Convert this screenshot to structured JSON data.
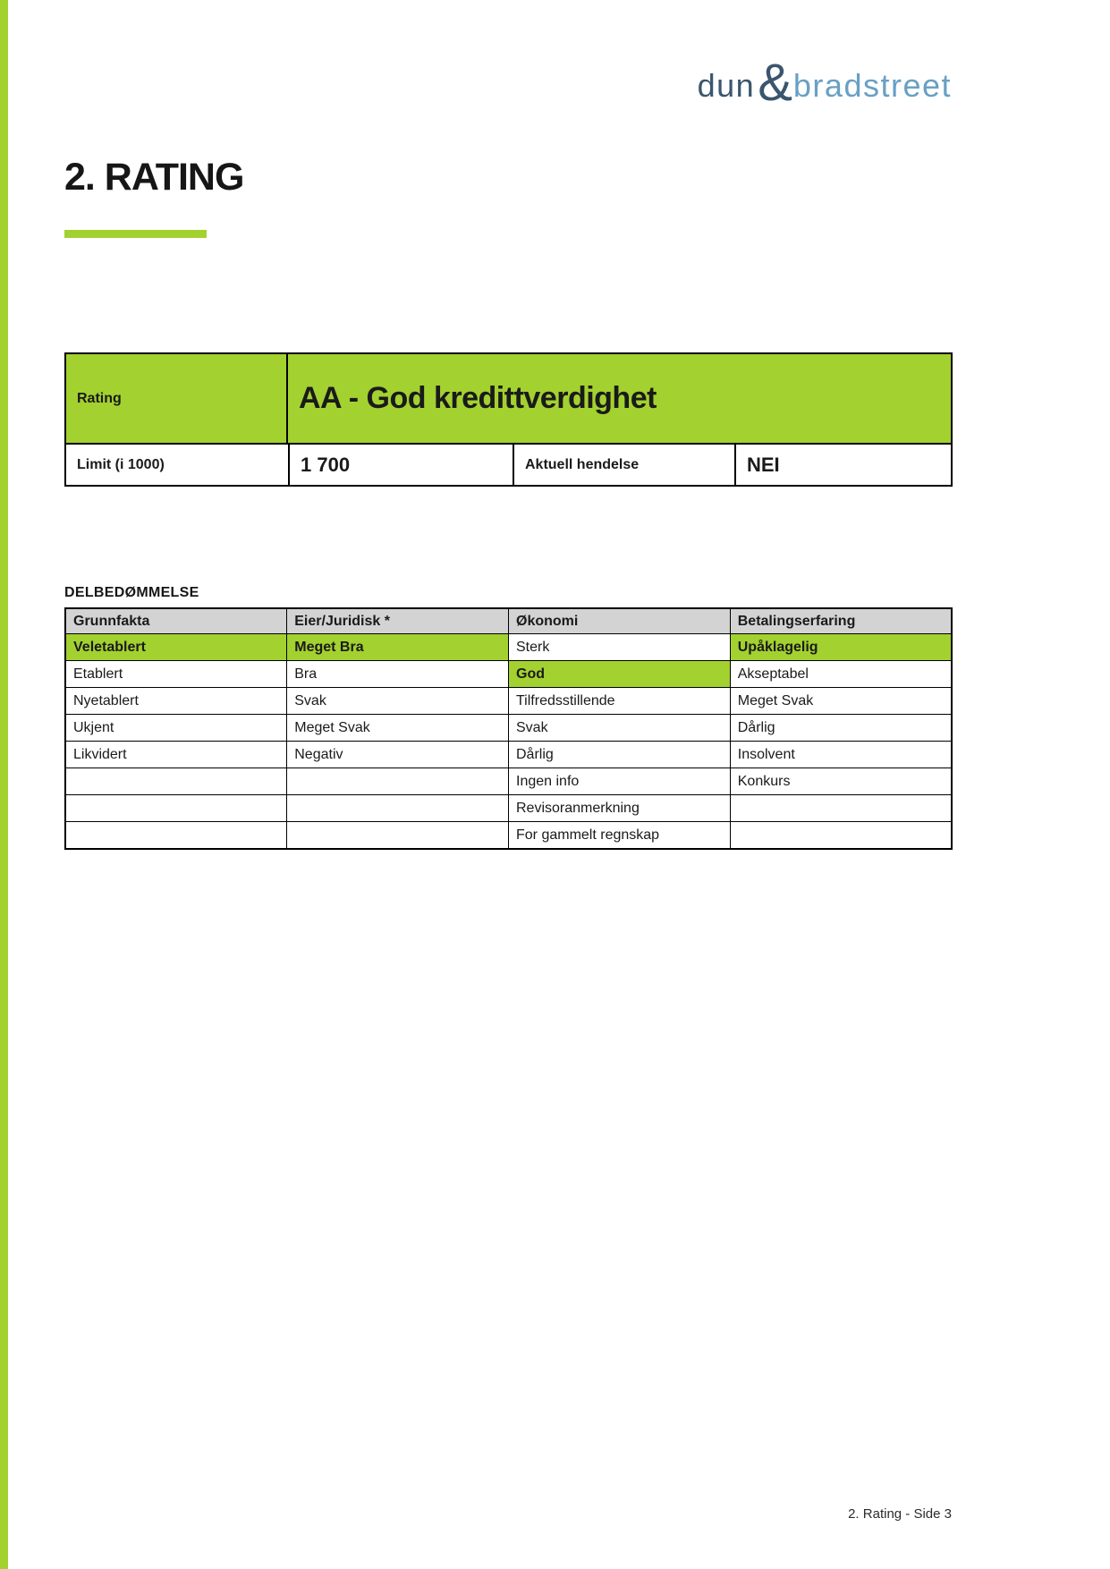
{
  "colors": {
    "accent": "#a3d130",
    "table_header_gray": "#d3d3d3",
    "logo_dark": "#3a566e",
    "logo_light": "#68a0c4",
    "text": "#1a1a1a"
  },
  "logo": {
    "word1": "dun",
    "ampersand": "&",
    "word2": "bradstreet"
  },
  "heading": {
    "title": "2. RATING"
  },
  "rating_panel": {
    "rating_label": "Rating",
    "rating_value": "AA - God kredittverdighet",
    "limit_label": "Limit (i 1000)",
    "limit_value": "1 700",
    "event_label": "Aktuell hendelse",
    "event_value": "NEI"
  },
  "assessment": {
    "section_title": "DELBEDØMMELSE",
    "columns": [
      "Grunnfakta",
      "Eier/Juridisk *",
      "Økonomi",
      "Betalingserfaring"
    ],
    "highlight_note": "cells flagged 1 are shown with green highlight",
    "rows": [
      [
        [
          "Veletablert",
          1
        ],
        [
          "Meget Bra",
          1
        ],
        [
          "Sterk",
          0
        ],
        [
          "Upåklagelig",
          1
        ]
      ],
      [
        [
          "Etablert",
          0
        ],
        [
          "Bra",
          0
        ],
        [
          "God",
          1
        ],
        [
          "Akseptabel",
          0
        ]
      ],
      [
        [
          "Nyetablert",
          0
        ],
        [
          "Svak",
          0
        ],
        [
          "Tilfredsstillende",
          0
        ],
        [
          "Meget Svak",
          0
        ]
      ],
      [
        [
          "Ukjent",
          0
        ],
        [
          "Meget Svak",
          0
        ],
        [
          "Svak",
          0
        ],
        [
          "Dårlig",
          0
        ]
      ],
      [
        [
          "Likvidert",
          0
        ],
        [
          "Negativ",
          0
        ],
        [
          "Dårlig",
          0
        ],
        [
          "Insolvent",
          0
        ]
      ],
      [
        [
          "",
          0
        ],
        [
          "",
          0
        ],
        [
          "Ingen info",
          0
        ],
        [
          "Konkurs",
          0
        ]
      ],
      [
        [
          "",
          0
        ],
        [
          "",
          0
        ],
        [
          "Revisoranmerkning",
          0
        ],
        [
          "",
          0
        ]
      ],
      [
        [
          "",
          0
        ],
        [
          "",
          0
        ],
        [
          "For gammelt regnskap",
          0
        ],
        [
          "",
          0
        ]
      ]
    ]
  },
  "footer": {
    "page_label": "2. Rating - Side 3"
  }
}
